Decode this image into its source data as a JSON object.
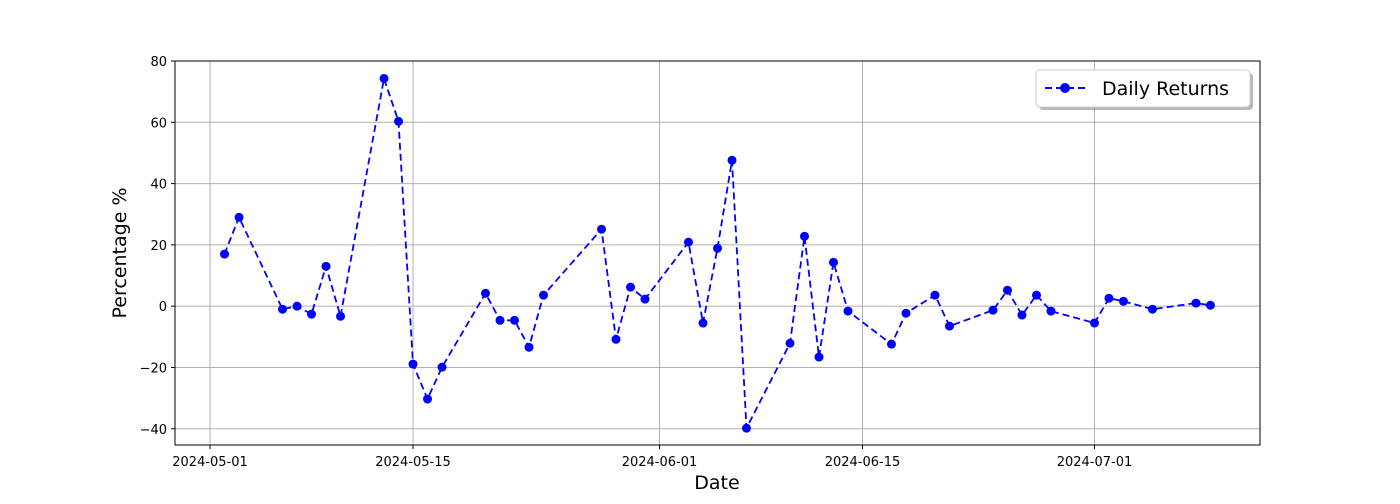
{
  "chart_data": {
    "type": "line",
    "title": "",
    "xlabel": "Date",
    "ylabel": "Percentage %",
    "xlim": [
      "2024-04-28T14:00",
      "2024-07-12T10:00"
    ],
    "ylim": [
      -45.3,
      80
    ],
    "x_ticks": [
      "2024-05-01",
      "2024-05-15",
      "2024-06-01",
      "2024-06-15",
      "2024-07-01"
    ],
    "y_ticks": [
      -40,
      -20,
      0,
      20,
      40,
      60,
      80
    ],
    "grid": true,
    "legend_position": "top-right",
    "series": [
      {
        "name": "Daily Returns",
        "color": "#0000ff",
        "line_style": "dashed",
        "marker": "circle",
        "x": [
          "2024-05-02",
          "2024-05-03",
          "2024-05-06",
          "2024-05-07",
          "2024-05-08",
          "2024-05-09",
          "2024-05-10",
          "2024-05-13",
          "2024-05-14",
          "2024-05-15",
          "2024-05-16",
          "2024-05-17",
          "2024-05-20",
          "2024-05-21",
          "2024-05-22",
          "2024-05-23",
          "2024-05-24",
          "2024-05-28",
          "2024-05-29",
          "2024-05-30",
          "2024-05-31",
          "2024-06-03",
          "2024-06-04",
          "2024-06-05",
          "2024-06-06",
          "2024-06-07",
          "2024-06-10",
          "2024-06-11",
          "2024-06-12",
          "2024-06-13",
          "2024-06-14",
          "2024-06-17",
          "2024-06-18",
          "2024-06-20",
          "2024-06-21",
          "2024-06-24",
          "2024-06-25",
          "2024-06-26",
          "2024-06-27",
          "2024-06-28",
          "2024-07-01",
          "2024-07-02",
          "2024-07-03",
          "2024-07-05",
          "2024-07-08",
          "2024-07-09"
        ],
        "y": [
          17.0,
          29.0,
          -1.0,
          0.0,
          -2.6,
          13.0,
          -3.3,
          74.3,
          60.3,
          -18.9,
          -30.3,
          -19.9,
          4.2,
          -4.6,
          -4.6,
          -13.4,
          3.6,
          25.1,
          -10.8,
          6.2,
          2.3,
          20.9,
          -5.5,
          18.9,
          47.6,
          -39.8,
          -12.1,
          22.8,
          -16.6,
          14.3,
          -1.6,
          -12.4,
          -2.3,
          3.6,
          -6.5,
          -1.3,
          5.2,
          -2.9,
          3.6,
          -1.6,
          -5.5,
          2.6,
          1.6,
          -1.0,
          1.0,
          0.3
        ]
      }
    ]
  }
}
